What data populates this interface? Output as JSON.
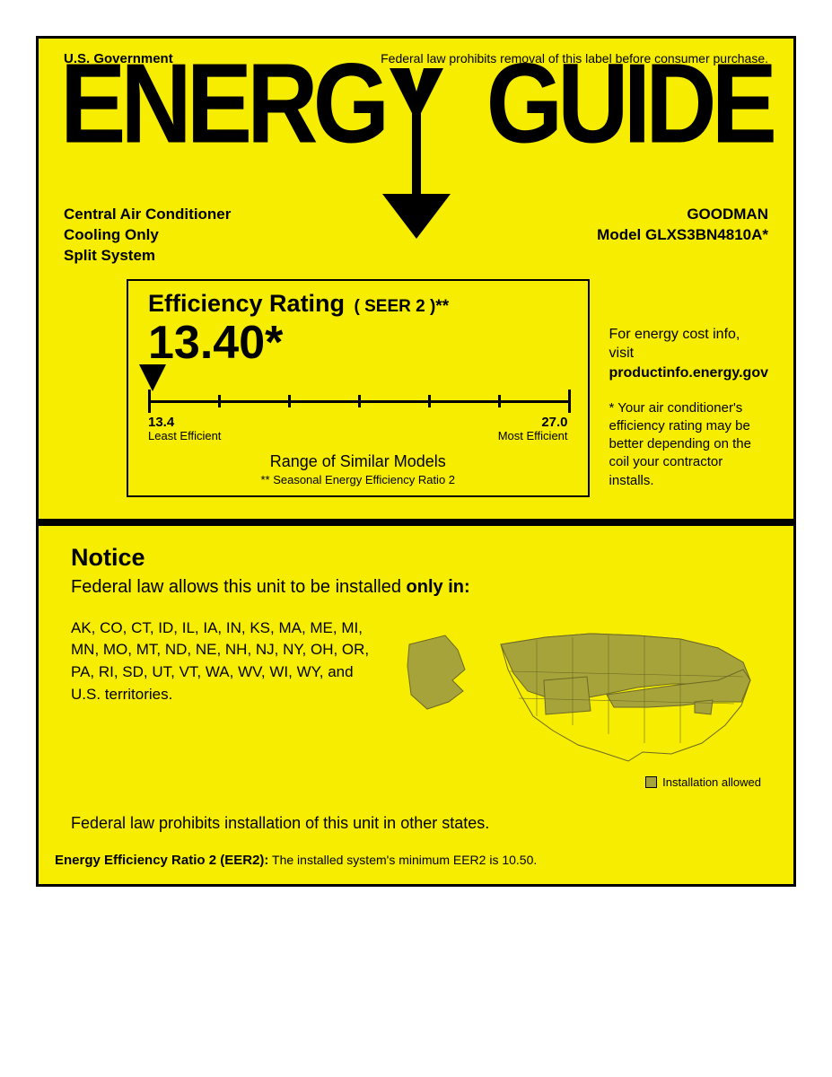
{
  "colors": {
    "background": "#f7ed00",
    "ink": "#000000",
    "map_allowed": "#a7a33b",
    "map_notallowed": "#f7ed00",
    "map_stroke": "#6b6926"
  },
  "header": {
    "gov": "U.S. Government",
    "law": "Federal law prohibits removal of this label before consumer purchase.",
    "logo_left": "ENERG",
    "logo_right": "GUIDE"
  },
  "product": {
    "type": "Central Air Conditioner",
    "mode": "Cooling Only",
    "system": "Split System",
    "brand": "GOODMAN",
    "model_label": "Model GLXS3BN4810A*"
  },
  "rating": {
    "title": "Efficiency Rating",
    "metric": "( SEER 2 )**",
    "value": "13.40*",
    "scale_min": "13.4",
    "scale_max": "27.0",
    "scale_min_label": "Least Efficient",
    "scale_max_label": "Most Efficient",
    "range_label": "Range of Similar Models",
    "range_sub": "** Seasonal Energy Efficiency Ratio 2",
    "pointer_pos_pct": 0,
    "tick_count": 7
  },
  "side": {
    "visit_pre": "For energy cost info, visit",
    "visit_url": "productinfo.energy.gov",
    "disclaimer": "*  Your air conditioner's efficiency rating may be better depending on the coil your contractor installs."
  },
  "notice": {
    "title": "Notice",
    "sub_pre": "Federal law allows this unit to be installed ",
    "sub_bold": "only in:",
    "states": "AK, CO, CT, ID, IL, IA, IN, KS, MA, ME, MI, MN, MO, MT, ND, NE, NH, NJ, NY, OH, OR, PA, RI, SD, UT, VT, WA, WV, WI, WY, and U.S. territories.",
    "legend": "Installation allowed",
    "prohibit": "Federal law prohibits installation of this unit in other states."
  },
  "eer": {
    "label": "Energy Efficiency Ratio 2 (EER2):",
    "text": " The installed system's minimum EER2 is 10.50."
  }
}
